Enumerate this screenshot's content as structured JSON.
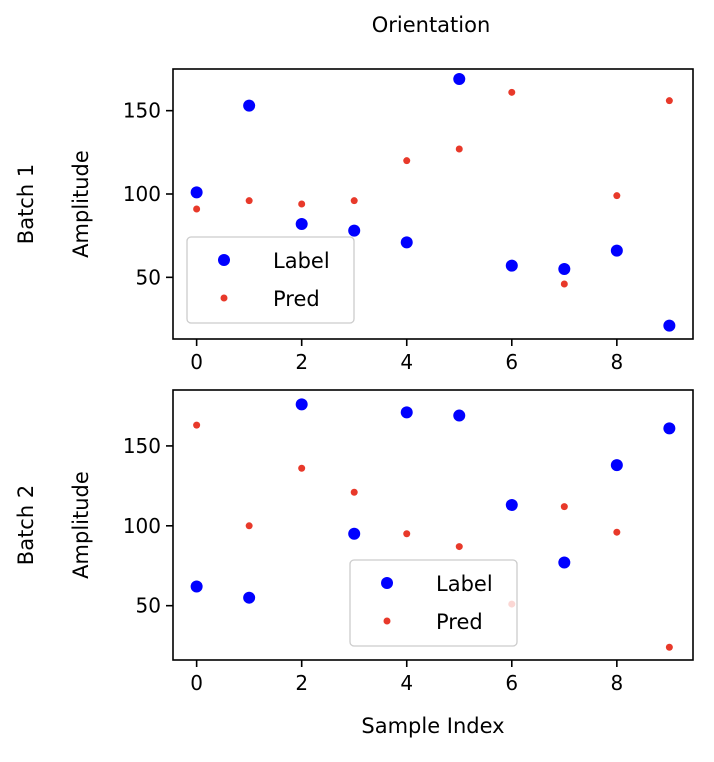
{
  "figure": {
    "title": "Orientation",
    "xlabel": "Sample Index"
  },
  "chart_data": [
    {
      "type": "scatter",
      "row_label": "Batch 1",
      "ylabel": "Amplitude",
      "xlim": [
        -0.45,
        9.45
      ],
      "ylim": [
        13,
        175
      ],
      "xticks": [
        0,
        2,
        4,
        6,
        8
      ],
      "yticks": [
        50,
        100,
        150
      ],
      "legend": "lower-left",
      "grid": false,
      "series": [
        {
          "name": "Label",
          "color": "#0000ff",
          "marker": "large-dot",
          "x": [
            0,
            1,
            2,
            3,
            4,
            5,
            6,
            7,
            8,
            9
          ],
          "y": [
            101,
            153,
            82,
            78,
            71,
            169,
            57,
            55,
            66,
            21
          ]
        },
        {
          "name": "Pred",
          "color": "#e8392a",
          "marker": "small-dot",
          "x": [
            0,
            1,
            2,
            3,
            4,
            5,
            6,
            7,
            8,
            9
          ],
          "y": [
            91,
            96,
            94,
            96,
            120,
            127,
            161,
            46,
            99,
            156
          ]
        }
      ]
    },
    {
      "type": "scatter",
      "row_label": "Batch 2",
      "ylabel": "Amplitude",
      "xlim": [
        -0.45,
        9.45
      ],
      "ylim": [
        16,
        185
      ],
      "xticks": [
        0,
        2,
        4,
        6,
        8
      ],
      "yticks": [
        50,
        100,
        150
      ],
      "legend": "lower-center",
      "grid": false,
      "series": [
        {
          "name": "Label",
          "color": "#0000ff",
          "marker": "large-dot",
          "x": [
            0,
            1,
            2,
            3,
            4,
            5,
            6,
            7,
            8,
            9
          ],
          "y": [
            62,
            55,
            176,
            95,
            171,
            169,
            113,
            77,
            138,
            161
          ]
        },
        {
          "name": "Pred",
          "color": "#e8392a",
          "marker": "small-dot",
          "x": [
            0,
            1,
            2,
            3,
            4,
            5,
            6,
            7,
            8,
            9
          ],
          "y": [
            163,
            100,
            136,
            121,
            95,
            87,
            51,
            112,
            96,
            24
          ]
        }
      ]
    }
  ]
}
